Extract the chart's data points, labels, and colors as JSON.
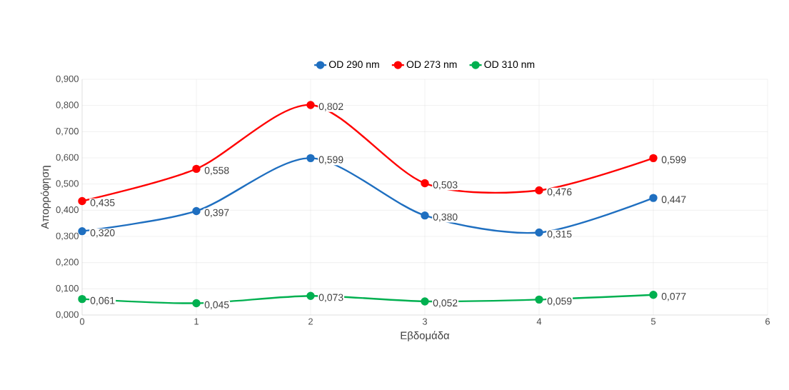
{
  "chart_data": {
    "type": "line",
    "xlabel": "Εβδομάδα",
    "ylabel": "Απορρόφηση",
    "x": [
      0,
      1,
      2,
      3,
      4,
      5
    ],
    "series": [
      {
        "name": "OD 290 nm",
        "color": "#1f6fc0",
        "values": [
          0.32,
          0.397,
          0.599,
          0.38,
          0.315,
          0.447
        ],
        "value_labels": [
          "0,320",
          "0,397",
          "0,599",
          "0,380",
          "0,315",
          "0,447"
        ]
      },
      {
        "name": "OD 273 nm",
        "color": "#ff0000",
        "values": [
          0.435,
          0.558,
          0.802,
          0.503,
          0.476,
          0.599
        ],
        "value_labels": [
          "0,435",
          "0,558",
          "0,802",
          "0,503",
          "0,476",
          "0,599"
        ]
      },
      {
        "name": "OD 310 nm",
        "color": "#00b050",
        "values": [
          0.061,
          0.045,
          0.073,
          0.052,
          0.059,
          0.077
        ],
        "value_labels": [
          "0,061",
          "0,045",
          "0,073",
          "0,052",
          "0,059",
          "0,077"
        ]
      }
    ],
    "xlim": [
      0,
      6
    ],
    "xticks": [
      0,
      1,
      2,
      3,
      4,
      5,
      6
    ],
    "ylim": [
      0,
      0.9
    ],
    "yticks": [
      {
        "value": 0,
        "label": "0,000"
      },
      {
        "value": 0.1,
        "label": "0,100"
      },
      {
        "value": 0.2,
        "label": "0,200"
      },
      {
        "value": 0.3,
        "label": "0,300"
      },
      {
        "value": 0.4,
        "label": "0,400"
      },
      {
        "value": 0.5,
        "label": "0,500"
      },
      {
        "value": 0.6,
        "label": "0,600"
      },
      {
        "value": 0.7,
        "label": "0,700"
      },
      {
        "value": 0.8,
        "label": "0,800"
      },
      {
        "value": 0.9,
        "label": "0,900"
      }
    ],
    "grid": true,
    "legend": "top",
    "marker": "circle",
    "line_style": "solid"
  }
}
